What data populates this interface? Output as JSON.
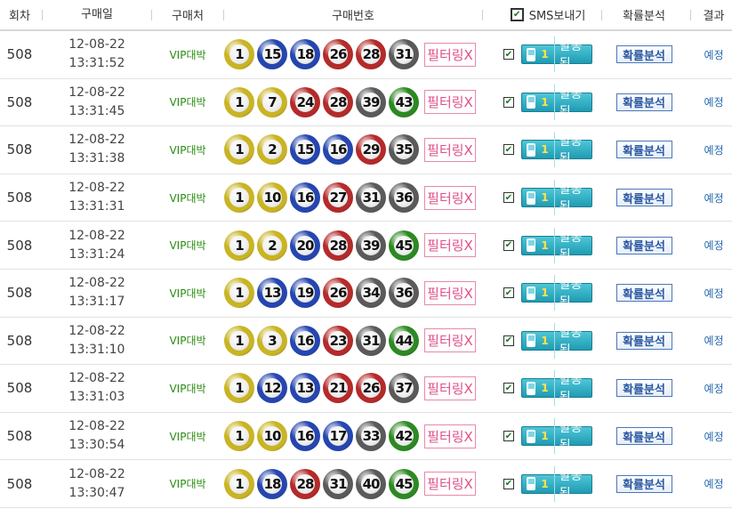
{
  "header": {
    "round": "회차",
    "date": "구매일",
    "shop": "구매처",
    "numbers": "구매번호",
    "sms": "SMS보내기",
    "analysis": "확률분석",
    "result": "결과"
  },
  "colors": {
    "yellow": "#c9b424",
    "blue": "#2546b0",
    "red": "#b52a2a",
    "gray": "#5a5a5a",
    "green": "#2c8a22"
  },
  "rows": [
    {
      "round": "508",
      "date": "12-08-22",
      "time": "13:31:52",
      "shop": "VIP대박",
      "numbers": [
        "1",
        "15",
        "18",
        "26",
        "28",
        "31"
      ],
      "filter": "필터링X",
      "sms_count": "1",
      "sms_label": "발송됨",
      "analysis": "확률분석",
      "result": "예정"
    },
    {
      "round": "508",
      "date": "12-08-22",
      "time": "13:31:45",
      "shop": "VIP대박",
      "numbers": [
        "1",
        "7",
        "24",
        "28",
        "39",
        "43"
      ],
      "filter": "필터링X",
      "sms_count": "1",
      "sms_label": "발송됨",
      "analysis": "확률분석",
      "result": "예정"
    },
    {
      "round": "508",
      "date": "12-08-22",
      "time": "13:31:38",
      "shop": "VIP대박",
      "numbers": [
        "1",
        "2",
        "15",
        "16",
        "29",
        "35"
      ],
      "filter": "필터링X",
      "sms_count": "1",
      "sms_label": "발송됨",
      "analysis": "확률분석",
      "result": "예정"
    },
    {
      "round": "508",
      "date": "12-08-22",
      "time": "13:31:31",
      "shop": "VIP대박",
      "numbers": [
        "1",
        "10",
        "16",
        "27",
        "31",
        "36"
      ],
      "filter": "필터링X",
      "sms_count": "1",
      "sms_label": "발송됨",
      "analysis": "확률분석",
      "result": "예정"
    },
    {
      "round": "508",
      "date": "12-08-22",
      "time": "13:31:24",
      "shop": "VIP대박",
      "numbers": [
        "1",
        "2",
        "20",
        "28",
        "39",
        "45"
      ],
      "filter": "필터링X",
      "sms_count": "1",
      "sms_label": "발송됨",
      "analysis": "확률분석",
      "result": "예정"
    },
    {
      "round": "508",
      "date": "12-08-22",
      "time": "13:31:17",
      "shop": "VIP대박",
      "numbers": [
        "1",
        "13",
        "19",
        "26",
        "34",
        "36"
      ],
      "filter": "필터링X",
      "sms_count": "1",
      "sms_label": "발송됨",
      "analysis": "확률분석",
      "result": "예정"
    },
    {
      "round": "508",
      "date": "12-08-22",
      "time": "13:31:10",
      "shop": "VIP대박",
      "numbers": [
        "1",
        "3",
        "16",
        "23",
        "31",
        "44"
      ],
      "filter": "필터링X",
      "sms_count": "1",
      "sms_label": "발송됨",
      "analysis": "확률분석",
      "result": "예정"
    },
    {
      "round": "508",
      "date": "12-08-22",
      "time": "13:31:03",
      "shop": "VIP대박",
      "numbers": [
        "1",
        "12",
        "13",
        "21",
        "26",
        "37"
      ],
      "filter": "필터링X",
      "sms_count": "1",
      "sms_label": "발송됨",
      "analysis": "확률분석",
      "result": "예정"
    },
    {
      "round": "508",
      "date": "12-08-22",
      "time": "13:30:54",
      "shop": "VIP대박",
      "numbers": [
        "1",
        "10",
        "16",
        "17",
        "33",
        "42"
      ],
      "filter": "필터링X",
      "sms_count": "1",
      "sms_label": "발송됨",
      "analysis": "확률분석",
      "result": "예정"
    },
    {
      "round": "508",
      "date": "12-08-22",
      "time": "13:30:47",
      "shop": "VIP대박",
      "numbers": [
        "1",
        "18",
        "28",
        "31",
        "40",
        "45"
      ],
      "filter": "필터링X",
      "sms_count": "1",
      "sms_label": "발송됨",
      "analysis": "확률분석",
      "result": "예정"
    }
  ]
}
